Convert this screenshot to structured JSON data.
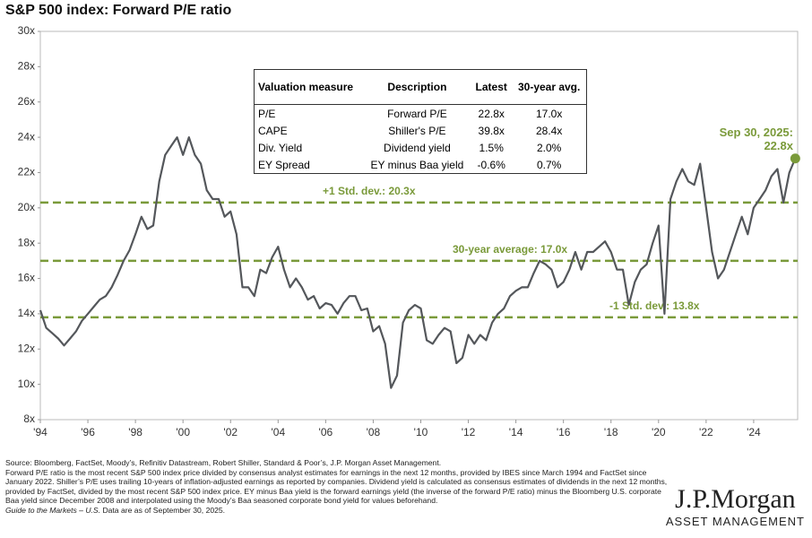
{
  "chart_data": {
    "type": "line",
    "title": "S&P 500 index: Forward P/E ratio",
    "x": [
      1994,
      1994.25,
      1994.5,
      1994.75,
      1995,
      1995.25,
      1995.5,
      1995.75,
      1996,
      1996.25,
      1996.5,
      1996.75,
      1997,
      1997.25,
      1997.5,
      1997.75,
      1998,
      1998.25,
      1998.5,
      1998.75,
      1999,
      1999.25,
      1999.5,
      1999.75,
      2000,
      2000.25,
      2000.5,
      2000.75,
      2001,
      2001.25,
      2001.5,
      2001.75,
      2002,
      2002.25,
      2002.5,
      2002.75,
      2003,
      2003.25,
      2003.5,
      2003.75,
      2004,
      2004.25,
      2004.5,
      2004.75,
      2005,
      2005.25,
      2005.5,
      2005.75,
      2006,
      2006.25,
      2006.5,
      2006.75,
      2007,
      2007.25,
      2007.5,
      2007.75,
      2008,
      2008.25,
      2008.5,
      2008.75,
      2009,
      2009.25,
      2009.5,
      2009.75,
      2010,
      2010.25,
      2010.5,
      2010.75,
      2011,
      2011.25,
      2011.5,
      2011.75,
      2012,
      2012.25,
      2012.5,
      2012.75,
      2013,
      2013.25,
      2013.5,
      2013.75,
      2014,
      2014.25,
      2014.5,
      2014.75,
      2015,
      2015.25,
      2015.5,
      2015.75,
      2016,
      2016.25,
      2016.5,
      2016.75,
      2017,
      2017.25,
      2017.5,
      2017.75,
      2018,
      2018.25,
      2018.5,
      2018.75,
      2019,
      2019.25,
      2019.5,
      2019.75,
      2020,
      2020.25,
      2020.5,
      2020.75,
      2021,
      2021.25,
      2021.5,
      2021.75,
      2022,
      2022.25,
      2022.5,
      2022.75,
      2023,
      2023.25,
      2023.5,
      2023.75,
      2024,
      2024.25,
      2024.5,
      2024.75,
      2025,
      2025.25,
      2025.5,
      2025.75
    ],
    "values": [
      14.2,
      13.2,
      12.9,
      12.6,
      12.2,
      12.6,
      13,
      13.6,
      14,
      14.4,
      14.8,
      15,
      15.5,
      16.2,
      17,
      17.6,
      18.5,
      19.5,
      18.8,
      19,
      21.5,
      23,
      23.5,
      24,
      23,
      24,
      23,
      22.5,
      21,
      20.5,
      20.5,
      19.5,
      19.8,
      18.5,
      15.5,
      15.5,
      15,
      16.5,
      16.3,
      17.2,
      17.8,
      16.5,
      15.5,
      16,
      15.5,
      14.8,
      15,
      14.3,
      14.6,
      14.5,
      14,
      14.6,
      15,
      15,
      14.2,
      14.3,
      13,
      13.3,
      12.3,
      9.8,
      10.5,
      13.5,
      14.2,
      14.5,
      14.3,
      12.5,
      12.3,
      12.8,
      13.2,
      13,
      11.2,
      11.5,
      12.8,
      12.3,
      12.8,
      12.5,
      13.5,
      14,
      14.3,
      15,
      15.3,
      15.5,
      15.5,
      16.3,
      17,
      16.8,
      16.5,
      15.5,
      15.8,
      16.5,
      17.5,
      16.5,
      17.5,
      17.5,
      17.8,
      18.1,
      17.5,
      16.5,
      16.5,
      14.5,
      15.8,
      16.5,
      16.8,
      18,
      19,
      14,
      20.5,
      21.5,
      22.2,
      21.5,
      21.3,
      22.5,
      20,
      17.5,
      16,
      16.5,
      17.5,
      18.5,
      19.5,
      18.5,
      20,
      20.5,
      21,
      21.8,
      22.2,
      20.3,
      22,
      22.8
    ],
    "color": "#54575b",
    "highlight_color": "#7a9a3a",
    "xlim": [
      1994,
      2025.85
    ],
    "xticks": [
      {
        "value": 1994,
        "label": "'94"
      },
      {
        "value": 1996,
        "label": "'96"
      },
      {
        "value": 1998,
        "label": "'98"
      },
      {
        "value": 2000,
        "label": "'00"
      },
      {
        "value": 2002,
        "label": "'02"
      },
      {
        "value": 2004,
        "label": "'04"
      },
      {
        "value": 2006,
        "label": "'06"
      },
      {
        "value": 2008,
        "label": "'08"
      },
      {
        "value": 2010,
        "label": "'10"
      },
      {
        "value": 2012,
        "label": "'12"
      },
      {
        "value": 2014,
        "label": "'14"
      },
      {
        "value": 2016,
        "label": "'16"
      },
      {
        "value": 2018,
        "label": "'18"
      },
      {
        "value": 2020,
        "label": "'20"
      },
      {
        "value": 2022,
        "label": "'22"
      },
      {
        "value": 2024,
        "label": "'24"
      }
    ],
    "ylim": [
      8,
      30
    ],
    "yticks": [
      {
        "value": 8,
        "label": "8x"
      },
      {
        "value": 10,
        "label": "10x"
      },
      {
        "value": 12,
        "label": "12x"
      },
      {
        "value": 14,
        "label": "14x"
      },
      {
        "value": 16,
        "label": "16x"
      },
      {
        "value": 18,
        "label": "18x"
      },
      {
        "value": 20,
        "label": "20x"
      },
      {
        "value": 22,
        "label": "22x"
      },
      {
        "value": 24,
        "label": "24x"
      },
      {
        "value": 26,
        "label": "26x"
      },
      {
        "value": 28,
        "label": "28x"
      },
      {
        "value": 30,
        "label": "30x"
      }
    ],
    "reference_lines": [
      {
        "value": 20.3,
        "label": "+1 Std. dev.: 20.3x"
      },
      {
        "value": 17.0,
        "label": "30-year average: 17.0x"
      },
      {
        "value": 13.8,
        "label": "-1 Std. dev.: 13.8x"
      }
    ],
    "last_point_label": [
      "Sep 30, 2025:",
      "22.8x"
    ],
    "table": {
      "header": [
        "Valuation measure",
        "Description",
        "Latest",
        "30-year avg."
      ],
      "rows": [
        [
          "P/E",
          "Forward P/E",
          "22.8x",
          "17.0x"
        ],
        [
          "CAPE",
          "Shiller's P/E",
          "39.8x",
          "28.4x"
        ],
        [
          "Div. Yield",
          "Dividend yield",
          "1.5%",
          "2.0%"
        ],
        [
          "EY Spread",
          "EY minus Baa yield",
          "-0.6%",
          "0.7%"
        ]
      ]
    }
  },
  "footnotes": [
    "Source: Bloomberg, FactSet, Moody’s, Refinitiv Datastream, Robert Shiller, Standard & Poor’s, J.P. Morgan Asset Management.",
    "Forward P/E ratio is the most recent S&P 500 index price divided by consensus analyst estimates for earnings in the next 12 months, provided by IBES since March 1994 and FactSet since January 2022. Shiller’s P/E uses trailing 10-years of inflation-adjusted earnings as reported by companies. Dividend yield is calculated as consensus estimates of dividends in the next 12 months, provided by FactSet, divided by the most recent S&P 500 index price. EY minus Baa yield is the forward earnings yield (the inverse of the forward P/E ratio) minus the Bloomberg U.S. corporate Baa yield since December 2008 and interpolated using the Moody’s Baa seasoned corporate bond yield for values beforehand."
  ],
  "guide_name": "Guide to the Markets – U.S.",
  "data_date": "Data are as of September 30, 2025.",
  "logo": {
    "name": "J.P.Morgan",
    "tagline": "ASSET MANAGEMENT"
  }
}
